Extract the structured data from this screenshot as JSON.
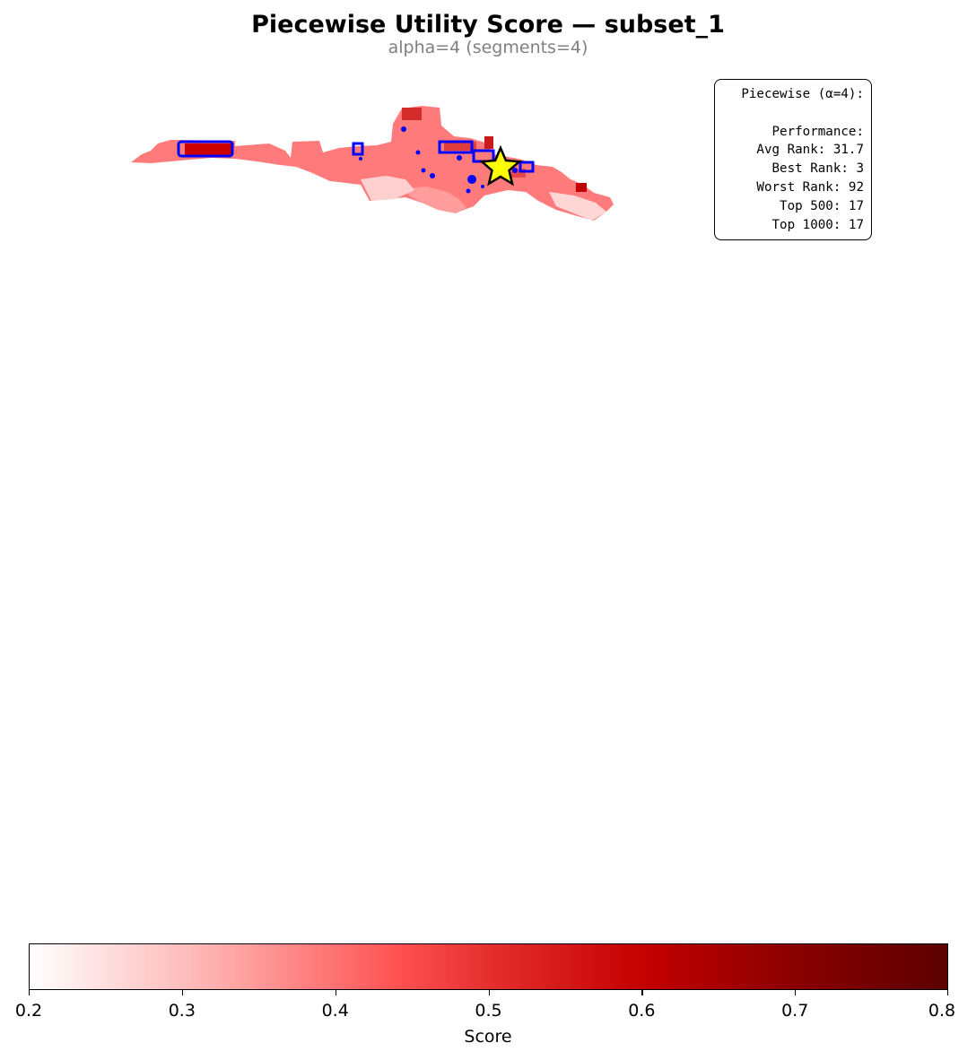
{
  "title": "Piecewise Utility Score — subset_1",
  "subtitle": "alpha=4 (segments=4)",
  "info_box": {
    "header": "Piecewise (α=4):",
    "section": "Performance:",
    "lines": [
      "Avg Rank: 31.7",
      "Best Rank: 3",
      "Worst Rank: 92",
      "Top 500: 17",
      "Top 1000: 17"
    ]
  },
  "map": {
    "marker_icon": "star-icon",
    "marker_color": "#ffff00",
    "selected_color": "#0000ff",
    "base_color": "#ff6f6f"
  },
  "colorbar": {
    "label": "Score",
    "min": 0.2,
    "max": 0.8,
    "ticks": [
      "0.2",
      "0.3",
      "0.4",
      "0.5",
      "0.6",
      "0.7",
      "0.8"
    ],
    "colormap_stops": [
      "#ffffff",
      "#ffb0b0",
      "#ff5252",
      "#e52f2f",
      "#c40000",
      "#8c0000",
      "#5c0000"
    ]
  }
}
